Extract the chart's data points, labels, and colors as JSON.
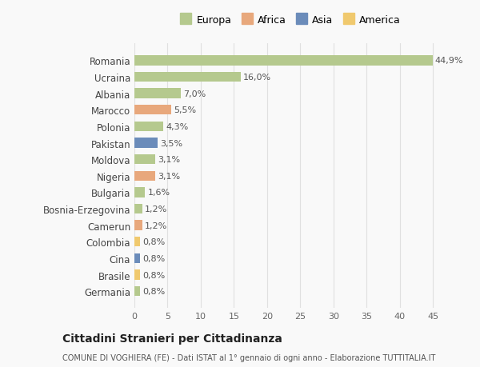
{
  "countries": [
    "Romania",
    "Ucraina",
    "Albania",
    "Marocco",
    "Polonia",
    "Pakistan",
    "Moldova",
    "Nigeria",
    "Bulgaria",
    "Bosnia-Erzegovina",
    "Camerun",
    "Colombia",
    "Cina",
    "Brasile",
    "Germania"
  ],
  "values": [
    44.9,
    16.0,
    7.0,
    5.5,
    4.3,
    3.5,
    3.1,
    3.1,
    1.6,
    1.2,
    1.2,
    0.8,
    0.8,
    0.8,
    0.8
  ],
  "labels": [
    "44,9%",
    "16,0%",
    "7,0%",
    "5,5%",
    "4,3%",
    "3,5%",
    "3,1%",
    "3,1%",
    "1,6%",
    "1,2%",
    "1,2%",
    "0,8%",
    "0,8%",
    "0,8%",
    "0,8%"
  ],
  "continents": [
    "Europa",
    "Europa",
    "Europa",
    "Africa",
    "Europa",
    "Asia",
    "Europa",
    "Africa",
    "Europa",
    "Europa",
    "Africa",
    "America",
    "Asia",
    "America",
    "Europa"
  ],
  "colors": {
    "Europa": "#b5c98e",
    "Africa": "#e8a87c",
    "Asia": "#6b8cba",
    "America": "#f0c96e"
  },
  "legend_colors": {
    "Europa": "#b5c98e",
    "Africa": "#e8a87c",
    "Asia": "#6b8cba",
    "America": "#f0c96e"
  },
  "title": "Cittadini Stranieri per Cittadinanza",
  "subtitle": "COMUNE DI VOGHIERA (FE) - Dati ISTAT al 1° gennaio di ogni anno - Elaborazione TUTTITALIA.IT",
  "xlim": [
    0,
    47
  ],
  "background_color": "#f9f9f9",
  "grid_color": "#e0e0e0",
  "bar_height": 0.6
}
